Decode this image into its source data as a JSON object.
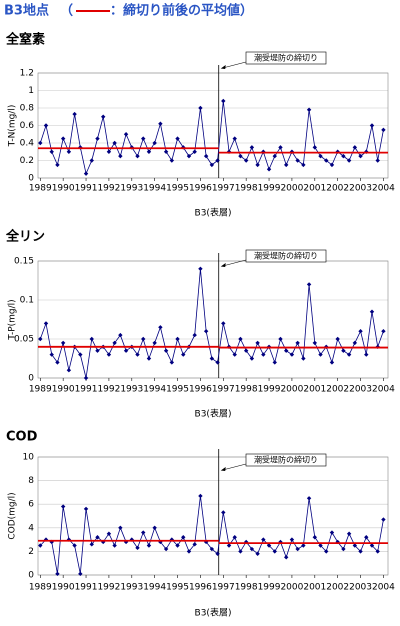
{
  "header": {
    "station": "B3地点",
    "legend_open": "（",
    "legend_label": "：締切り前後の平均値）",
    "mean_color": "#e00000"
  },
  "chart_data": [
    {
      "type": "line",
      "title": "全窒素",
      "ylabel": "T-N(mg/l)",
      "xlabel": "B3(表層)",
      "annotation": "潮受堤防の締切り",
      "event_x": 1996.8,
      "mean_before": 0.34,
      "mean_after": 0.29,
      "xlim": [
        1988.9,
        2004.2
      ],
      "xticks": [
        1989,
        1990,
        1991,
        1992,
        1993,
        1994,
        1995,
        1996,
        1997,
        1998,
        1999,
        2000,
        2001,
        2002,
        2003,
        2004
      ],
      "ylim": [
        0,
        1.2
      ],
      "yticks": [
        0,
        0.2,
        0.4,
        0.6,
        0.8,
        1,
        1.2
      ],
      "grid": true,
      "x": [
        1989,
        1989.25,
        1989.5,
        1989.75,
        1990,
        1990.25,
        1990.5,
        1990.75,
        1991,
        1991.25,
        1991.5,
        1991.75,
        1992,
        1992.25,
        1992.5,
        1992.75,
        1993,
        1993.25,
        1993.5,
        1993.75,
        1994,
        1994.25,
        1994.5,
        1994.75,
        1995,
        1995.25,
        1995.5,
        1995.75,
        1996,
        1996.25,
        1996.5,
        1996.75,
        1997,
        1997.25,
        1997.5,
        1997.75,
        1998,
        1998.25,
        1998.5,
        1998.75,
        1999,
        1999.25,
        1999.5,
        1999.75,
        2000,
        2000.25,
        2000.5,
        2000.75,
        2001,
        2001.25,
        2001.5,
        2001.75,
        2002,
        2002.25,
        2002.5,
        2002.75,
        2003,
        2003.25,
        2003.5,
        2003.75,
        2004
      ],
      "series": [
        {
          "color": "#000080",
          "values": [
            0.4,
            0.6,
            0.3,
            0.15,
            0.45,
            0.3,
            0.73,
            0.35,
            0.05,
            0.2,
            0.45,
            0.7,
            0.3,
            0.4,
            0.25,
            0.5,
            0.35,
            0.25,
            0.45,
            0.3,
            0.4,
            0.62,
            0.3,
            0.2,
            0.45,
            0.35,
            0.25,
            0.3,
            0.8,
            0.25,
            0.15,
            0.2,
            0.88,
            0.3,
            0.45,
            0.25,
            0.2,
            0.35,
            0.15,
            0.3,
            0.1,
            0.25,
            0.35,
            0.15,
            0.3,
            0.2,
            0.15,
            0.78,
            0.35,
            0.25,
            0.2,
            0.15,
            0.3,
            0.25,
            0.2,
            0.35,
            0.25,
            0.3,
            0.6,
            0.2,
            0.55
          ]
        }
      ]
    },
    {
      "type": "line",
      "title": "全リン",
      "ylabel": "T-P(mg/l)",
      "xlabel": "B3(表層)",
      "annotation": "潮受堤防の締切り",
      "event_x": 1996.8,
      "mean_before": 0.04,
      "mean_after": 0.039,
      "xlim": [
        1988.9,
        2004.2
      ],
      "xticks": [
        1989,
        1990,
        1991,
        1992,
        1993,
        1994,
        1995,
        1996,
        1997,
        1998,
        1999,
        2000,
        2001,
        2002,
        2003,
        2004
      ],
      "ylim": [
        0,
        0.15
      ],
      "yticks": [
        0,
        0.05,
        0.1,
        0.15
      ],
      "grid": true,
      "x": [
        1989,
        1989.25,
        1989.5,
        1989.75,
        1990,
        1990.25,
        1990.5,
        1990.75,
        1991,
        1991.25,
        1991.5,
        1991.75,
        1992,
        1992.25,
        1992.5,
        1992.75,
        1993,
        1993.25,
        1993.5,
        1993.75,
        1994,
        1994.25,
        1994.5,
        1994.75,
        1995,
        1995.25,
        1995.5,
        1995.75,
        1996,
        1996.25,
        1996.5,
        1996.75,
        1997,
        1997.25,
        1997.5,
        1997.75,
        1998,
        1998.25,
        1998.5,
        1998.75,
        1999,
        1999.25,
        1999.5,
        1999.75,
        2000,
        2000.25,
        2000.5,
        2000.75,
        2001,
        2001.25,
        2001.5,
        2001.75,
        2002,
        2002.25,
        2002.5,
        2002.75,
        2003,
        2003.25,
        2003.5,
        2003.75,
        2004
      ],
      "series": [
        {
          "color": "#000080",
          "values": [
            0.05,
            0.07,
            0.03,
            0.02,
            0.045,
            0.01,
            0.04,
            0.03,
            0.0,
            0.05,
            0.035,
            0.04,
            0.03,
            0.045,
            0.055,
            0.035,
            0.04,
            0.03,
            0.05,
            0.025,
            0.045,
            0.065,
            0.035,
            0.02,
            0.05,
            0.03,
            0.04,
            0.055,
            0.14,
            0.06,
            0.025,
            0.02,
            0.07,
            0.04,
            0.03,
            0.05,
            0.035,
            0.025,
            0.045,
            0.03,
            0.04,
            0.02,
            0.05,
            0.035,
            0.03,
            0.045,
            0.025,
            0.12,
            0.045,
            0.03,
            0.04,
            0.02,
            0.05,
            0.035,
            0.03,
            0.045,
            0.06,
            0.03,
            0.085,
            0.04,
            0.06
          ]
        }
      ]
    },
    {
      "type": "line",
      "title": "COD",
      "ylabel": "COD(mg/l)",
      "xlabel": "B3(表層)",
      "annotation": "潮受堤防の締切り",
      "event_x": 1996.8,
      "mean_before": 2.9,
      "mean_after": 2.7,
      "xlim": [
        1988.9,
        2004.2
      ],
      "xticks": [
        1989,
        1990,
        1991,
        1992,
        1993,
        1994,
        1995,
        1996,
        1997,
        1998,
        1999,
        2000,
        2001,
        2002,
        2003,
        2004
      ],
      "ylim": [
        0,
        10
      ],
      "yticks": [
        0,
        2,
        4,
        6,
        8,
        10
      ],
      "grid": true,
      "x": [
        1989,
        1989.25,
        1989.5,
        1989.75,
        1990,
        1990.25,
        1990.5,
        1990.75,
        1991,
        1991.25,
        1991.5,
        1991.75,
        1992,
        1992.25,
        1992.5,
        1992.75,
        1993,
        1993.25,
        1993.5,
        1993.75,
        1994,
        1994.25,
        1994.5,
        1994.75,
        1995,
        1995.25,
        1995.5,
        1995.75,
        1996,
        1996.25,
        1996.5,
        1996.75,
        1997,
        1997.25,
        1997.5,
        1997.75,
        1998,
        1998.25,
        1998.5,
        1998.75,
        1999,
        1999.25,
        1999.5,
        1999.75,
        2000,
        2000.25,
        2000.5,
        2000.75,
        2001,
        2001.25,
        2001.5,
        2001.75,
        2002,
        2002.25,
        2002.5,
        2002.75,
        2003,
        2003.25,
        2003.5,
        2003.75,
        2004
      ],
      "series": [
        {
          "color": "#000080",
          "values": [
            2.5,
            3.0,
            2.8,
            0.1,
            5.8,
            3.0,
            2.5,
            0.1,
            5.6,
            2.6,
            3.2,
            2.8,
            3.5,
            2.5,
            4.0,
            2.8,
            3.0,
            2.3,
            3.6,
            2.5,
            4.0,
            2.8,
            2.2,
            3.0,
            2.5,
            3.2,
            2.0,
            2.6,
            6.7,
            2.8,
            2.2,
            1.8,
            5.3,
            2.5,
            3.2,
            2.0,
            2.8,
            2.2,
            1.8,
            3.0,
            2.5,
            2.0,
            2.8,
            1.5,
            3.0,
            2.2,
            2.5,
            6.5,
            3.2,
            2.5,
            2.0,
            3.6,
            2.8,
            2.2,
            3.5,
            2.5,
            2.0,
            3.2,
            2.5,
            2.0,
            4.7
          ]
        }
      ]
    }
  ]
}
